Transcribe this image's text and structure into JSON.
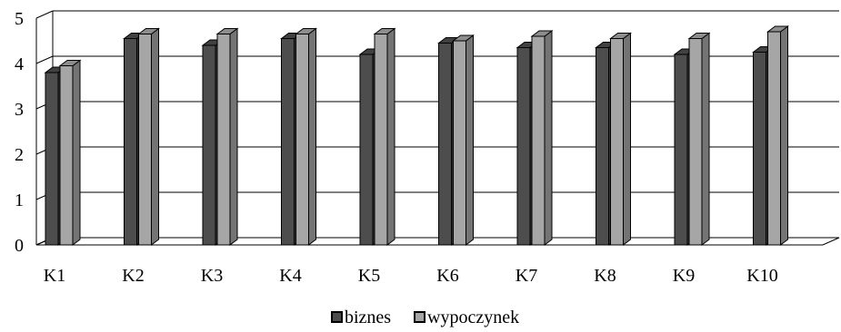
{
  "chart_data": {
    "type": "bar",
    "categories": [
      "K1",
      "K2",
      "K3",
      "K4",
      "K5",
      "K6",
      "K7",
      "K8",
      "K9",
      "K10"
    ],
    "series": [
      {
        "name": "biznes",
        "color": "#4d4d4d",
        "values": [
          3.8,
          4.55,
          4.4,
          4.55,
          4.2,
          4.45,
          4.35,
          4.35,
          4.2,
          4.25
        ]
      },
      {
        "name": "wypoczynek",
        "color": "#a6a6a6",
        "values": [
          3.95,
          4.65,
          4.65,
          4.65,
          4.65,
          4.5,
          4.6,
          4.55,
          4.55,
          4.7
        ]
      }
    ],
    "yticks": [
      "0",
      "1",
      "2",
      "3",
      "4",
      "5"
    ],
    "ylim": [
      0,
      5
    ],
    "grid": true,
    "legend_position": "bottom"
  }
}
